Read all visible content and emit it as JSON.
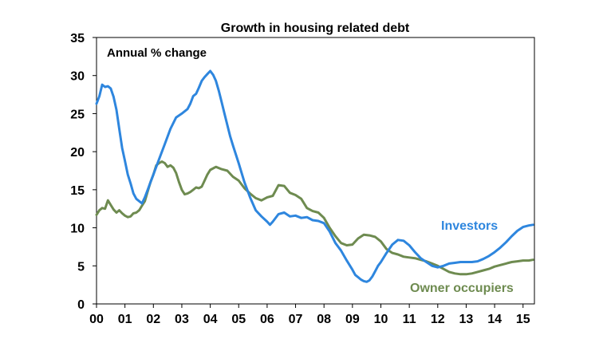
{
  "chart_data": {
    "type": "line",
    "title": "Growth in housing related debt",
    "annotation": "Annual % change",
    "xlabel": "",
    "ylabel": "",
    "ylim": [
      0,
      35
    ],
    "yticks": [
      "0",
      "5",
      "10",
      "15",
      "20",
      "25",
      "30",
      "35"
    ],
    "xlim": [
      2000,
      2015.4
    ],
    "xtick_labels": [
      "00",
      "01",
      "02",
      "03",
      "04",
      "05",
      "06",
      "07",
      "08",
      "09",
      "10",
      "11",
      "12",
      "13",
      "14",
      "15"
    ],
    "grid": false,
    "series": [
      {
        "name": "Investors",
        "color": "#2E86DE",
        "x": [
          2000.0,
          2000.1,
          2000.2,
          2000.3,
          2000.4,
          2000.5,
          2000.6,
          2000.7,
          2000.8,
          2000.9,
          2001.0,
          2001.1,
          2001.2,
          2001.3,
          2001.4,
          2001.5,
          2001.6,
          2001.7,
          2001.8,
          2001.9,
          2002.0,
          2002.2,
          2002.4,
          2002.6,
          2002.8,
          2003.0,
          2003.1,
          2003.2,
          2003.3,
          2003.4,
          2003.5,
          2003.6,
          2003.7,
          2003.8,
          2003.9,
          2004.0,
          2004.1,
          2004.2,
          2004.3,
          2004.4,
          2004.5,
          2004.6,
          2004.7,
          2004.8,
          2005.0,
          2005.2,
          2005.4,
          2005.6,
          2005.8,
          2006.0,
          2006.1,
          2006.2,
          2006.4,
          2006.6,
          2006.8,
          2007.0,
          2007.2,
          2007.4,
          2007.6,
          2007.8,
          2008.0,
          2008.2,
          2008.4,
          2008.6,
          2008.8,
          2009.0,
          2009.1,
          2009.2,
          2009.3,
          2009.4,
          2009.5,
          2009.6,
          2009.7,
          2009.8,
          2009.9,
          2010.0,
          2010.2,
          2010.4,
          2010.6,
          2010.8,
          2011.0,
          2011.2,
          2011.4,
          2011.6,
          2011.8,
          2012.0,
          2012.2,
          2012.4,
          2012.6,
          2012.8,
          2013.0,
          2013.2,
          2013.4,
          2013.6,
          2013.8,
          2014.0,
          2014.2,
          2014.4,
          2014.6,
          2014.8,
          2015.0,
          2015.2,
          2015.35
        ],
        "values": [
          26.3,
          27.3,
          28.8,
          28.5,
          28.6,
          28.3,
          27.2,
          25.5,
          23.0,
          20.5,
          18.8,
          17.0,
          15.8,
          14.5,
          13.8,
          13.5,
          13.2,
          14.0,
          15.0,
          16.0,
          17.0,
          19.0,
          21.0,
          23.0,
          24.5,
          25.0,
          25.3,
          25.6,
          26.3,
          27.3,
          27.6,
          28.4,
          29.3,
          29.8,
          30.2,
          30.6,
          30.1,
          29.3,
          28.0,
          26.5,
          25.0,
          23.5,
          22.0,
          20.8,
          18.5,
          16.0,
          14.0,
          12.3,
          11.5,
          10.8,
          10.4,
          10.8,
          11.8,
          12.0,
          11.5,
          11.6,
          11.3,
          11.4,
          11.0,
          10.9,
          10.6,
          9.5,
          8.0,
          7.0,
          5.7,
          4.5,
          3.8,
          3.5,
          3.2,
          3.0,
          2.9,
          3.1,
          3.6,
          4.3,
          5.0,
          5.5,
          6.7,
          7.8,
          8.4,
          8.3,
          7.7,
          6.8,
          6.0,
          5.5,
          5.0,
          4.8,
          5.0,
          5.3,
          5.4,
          5.5,
          5.5,
          5.5,
          5.6,
          5.9,
          6.3,
          6.8,
          7.4,
          8.1,
          8.9,
          9.6,
          10.1,
          10.3,
          10.4
        ]
      },
      {
        "name": "Owner occupiers",
        "color": "#6E8B50",
        "x": [
          2000.0,
          2000.1,
          2000.2,
          2000.3,
          2000.4,
          2000.5,
          2000.6,
          2000.7,
          2000.8,
          2000.9,
          2001.0,
          2001.1,
          2001.2,
          2001.3,
          2001.4,
          2001.5,
          2001.6,
          2001.7,
          2001.8,
          2001.9,
          2002.0,
          2002.1,
          2002.2,
          2002.3,
          2002.4,
          2002.5,
          2002.6,
          2002.7,
          2002.8,
          2002.9,
          2003.0,
          2003.1,
          2003.2,
          2003.3,
          2003.4,
          2003.5,
          2003.6,
          2003.7,
          2003.8,
          2003.9,
          2004.0,
          2004.2,
          2004.4,
          2004.6,
          2004.8,
          2005.0,
          2005.2,
          2005.4,
          2005.6,
          2005.8,
          2006.0,
          2006.2,
          2006.4,
          2006.6,
          2006.8,
          2007.0,
          2007.2,
          2007.4,
          2007.6,
          2007.8,
          2008.0,
          2008.2,
          2008.4,
          2008.6,
          2008.8,
          2009.0,
          2009.2,
          2009.4,
          2009.6,
          2009.8,
          2010.0,
          2010.2,
          2010.4,
          2010.6,
          2010.8,
          2011.0,
          2011.2,
          2011.4,
          2011.6,
          2011.8,
          2012.0,
          2012.2,
          2012.4,
          2012.6,
          2012.8,
          2013.0,
          2013.2,
          2013.4,
          2013.6,
          2013.8,
          2014.0,
          2014.2,
          2014.4,
          2014.6,
          2014.8,
          2015.0,
          2015.2,
          2015.35
        ],
        "values": [
          11.7,
          12.3,
          12.6,
          12.5,
          13.6,
          13.0,
          12.4,
          12.0,
          12.3,
          11.9,
          11.6,
          11.4,
          11.5,
          11.9,
          12.0,
          12.3,
          12.9,
          13.5,
          14.8,
          16.0,
          17.0,
          18.2,
          18.5,
          18.7,
          18.5,
          18.0,
          18.2,
          17.9,
          17.2,
          16.0,
          15.0,
          14.4,
          14.5,
          14.7,
          15.0,
          15.3,
          15.2,
          15.4,
          16.2,
          17.0,
          17.6,
          18.0,
          17.7,
          17.5,
          16.7,
          16.2,
          15.2,
          14.5,
          13.9,
          13.6,
          14.0,
          14.2,
          15.6,
          15.5,
          14.6,
          14.3,
          13.8,
          12.6,
          12.2,
          12.0,
          11.3,
          10.0,
          8.9,
          8.0,
          7.7,
          7.8,
          8.6,
          9.1,
          9.0,
          8.8,
          8.2,
          7.2,
          6.7,
          6.5,
          6.2,
          6.1,
          6.0,
          5.8,
          5.6,
          5.3,
          5.0,
          4.6,
          4.2,
          4.0,
          3.9,
          3.9,
          4.0,
          4.2,
          4.4,
          4.6,
          4.9,
          5.1,
          5.3,
          5.5,
          5.6,
          5.7,
          5.7,
          5.8
        ]
      }
    ],
    "series_labels": {
      "investors": "Investors",
      "owner_occupiers": "Owner occupiers"
    }
  }
}
